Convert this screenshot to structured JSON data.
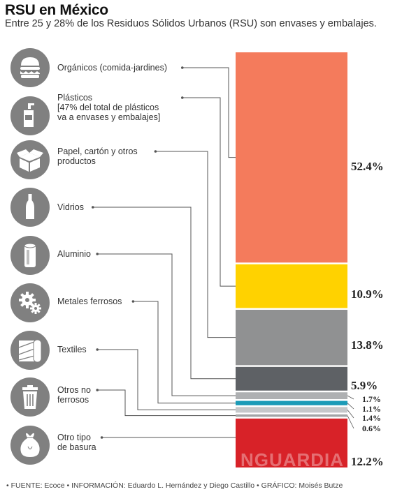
{
  "header": {
    "title": "RSU en México",
    "subtitle": "Entre 25 y 28% de los Residuos Sólidos Urbanos (RSU) son envases y embalajes."
  },
  "footer": {
    "text": "• FUENTE: Ecoce  • INFORMACIÓN: Eduardo L. Hernández y Diego Castillo  • GRÁFICO: Moisés Butze"
  },
  "watermark": "NGUARDIA",
  "colors": {
    "icon_circle": "#808080",
    "connector": "#555555"
  },
  "chart_data": {
    "type": "bar",
    "stacked": true,
    "orientation": "vertical",
    "title": "RSU en México",
    "subtitle": "Entre 25 y 28% de los Residuos Sólidos Urbanos (RSU) son envases y embalajes.",
    "unit": "%",
    "series": [
      {
        "name": "Orgánicos (comida-jardines)",
        "lines": [
          "Orgánicos (comida-jardines)"
        ],
        "value": 52.4,
        "value_label": "52.4%",
        "color": "#f47b5c",
        "icon": "burger-icon"
      },
      {
        "name": "Plásticos",
        "lines": [
          "Plásticos",
          "[47% del total de plásticos",
          "va a envases y embalajes]"
        ],
        "value": 10.9,
        "value_label": "10.9%",
        "color": "#ffd200",
        "icon": "bottle-icon"
      },
      {
        "name": "Papel, cartón y otros productos",
        "lines": [
          "Papel, cartón y otros",
          "productos"
        ],
        "value": 13.8,
        "value_label": "13.8%",
        "color": "#909192",
        "icon": "box-icon"
      },
      {
        "name": "Vidrios",
        "lines": [
          "Vidrios"
        ],
        "value": 5.9,
        "value_label": "5.9%",
        "color": "#5e6165",
        "icon": "glass-bottle-icon"
      },
      {
        "name": "Aluminio",
        "lines": [
          "Aluminio"
        ],
        "value": 1.7,
        "value_label": "1.7%",
        "color": "#aeb0b2",
        "icon": "can-icon"
      },
      {
        "name": "Metales ferrosos",
        "lines": [
          "Metales ferrosos"
        ],
        "value": 1.1,
        "value_label": "1.1%",
        "color": "#1b9bb7",
        "icon": "gears-icon"
      },
      {
        "name": "Textiles",
        "lines": [
          "Textiles"
        ],
        "value": 1.4,
        "value_label": "1.4%",
        "color": "#c6c8ca",
        "icon": "fabric-roll-icon"
      },
      {
        "name": "Otros no ferrosos",
        "lines": [
          "Otros no",
          "ferrosos"
        ],
        "value": 0.6,
        "value_label": "0.6%",
        "color": "#a3a5a7",
        "icon": "trash-can-icon"
      },
      {
        "name": "Otro tipo de basura",
        "lines": [
          "Otro tipo",
          "de basura"
        ],
        "value": 12.2,
        "value_label": "12.2%",
        "color": "#d82228",
        "icon": "trash-bag-icon"
      }
    ]
  }
}
